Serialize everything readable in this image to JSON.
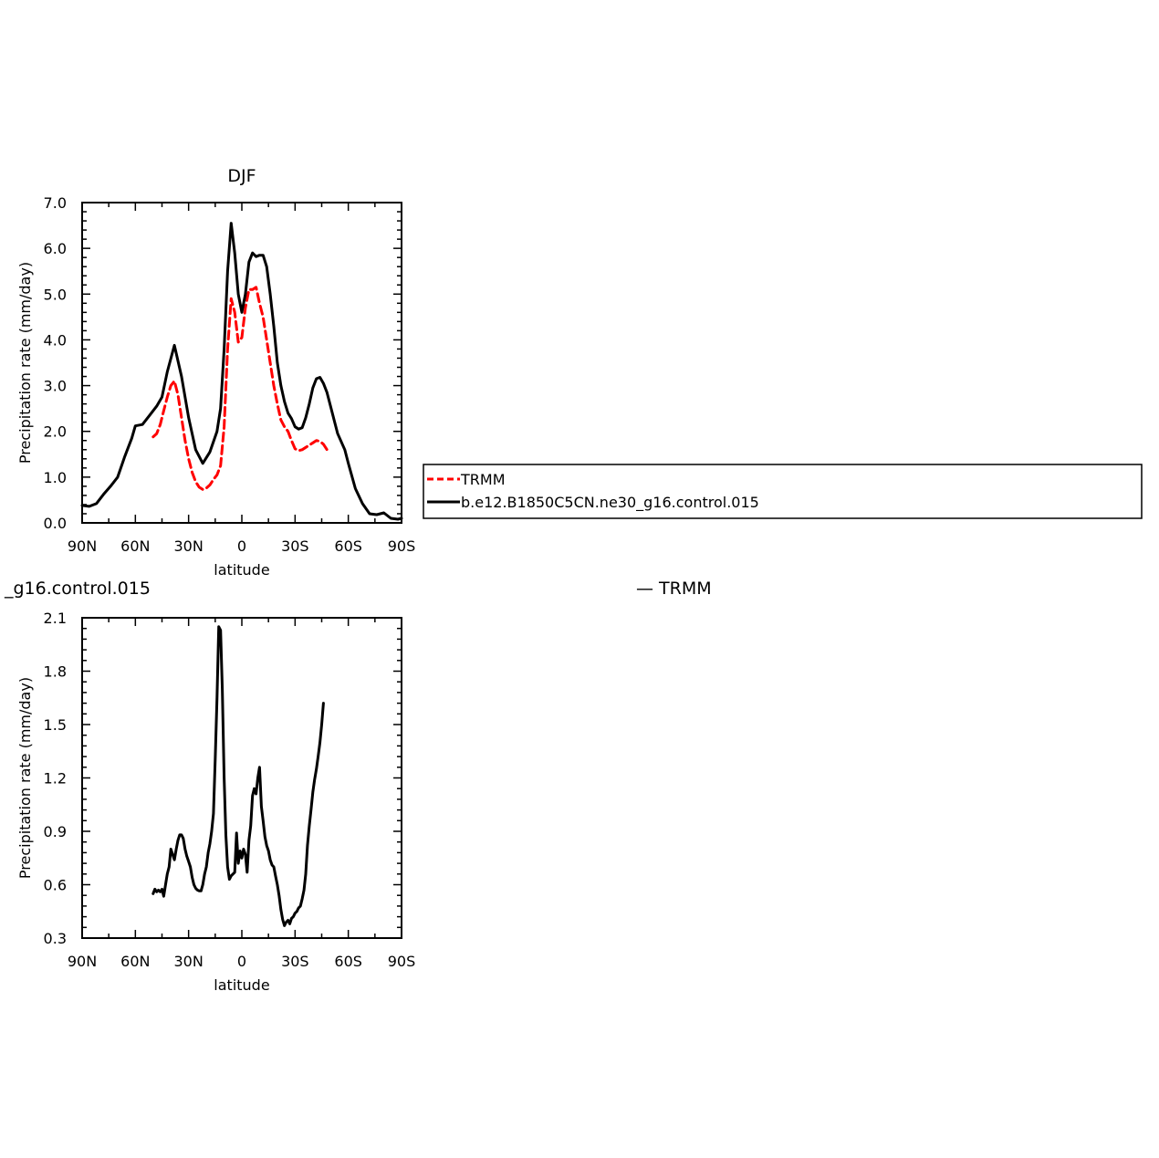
{
  "chart_data": [
    {
      "type": "line",
      "title": "DJF",
      "xlabel": "latitude",
      "ylabel": "Precipitation rate (mm/day)",
      "xlim": [
        -90,
        90
      ],
      "ylim": [
        0.0,
        7.0
      ],
      "x_ticks": [
        -90,
        -60,
        -30,
        0,
        30,
        60,
        90
      ],
      "x_tick_labels": [
        "90N",
        "60N",
        "30N",
        "0",
        "30S",
        "60S",
        "90S"
      ],
      "y_ticks": [
        0,
        1,
        2,
        3,
        4,
        5,
        6,
        7
      ],
      "y_tick_labels": [
        "0.0",
        "1.0",
        "2.0",
        "3.0",
        "4.0",
        "5.0",
        "6.0",
        "7.0"
      ],
      "legend": {
        "placement": "right",
        "entries": [
          "TRMM",
          "b.e12.B1850C5CN.ne30_g16.control.015"
        ]
      },
      "series": [
        {
          "name": "TRMM",
          "color": "#ff0000",
          "dash": "dashed",
          "points": [
            [
              -50,
              1.88
            ],
            [
              -48,
              1.95
            ],
            [
              -46,
              2.15
            ],
            [
              -44,
              2.45
            ],
            [
              -42,
              2.75
            ],
            [
              -40,
              3.0
            ],
            [
              -38,
              3.1
            ],
            [
              -36,
              2.8
            ],
            [
              -34,
              2.3
            ],
            [
              -32,
              1.8
            ],
            [
              -30,
              1.4
            ],
            [
              -28,
              1.1
            ],
            [
              -26,
              0.9
            ],
            [
              -24,
              0.78
            ],
            [
              -22,
              0.73
            ],
            [
              -20,
              0.76
            ],
            [
              -18,
              0.83
            ],
            [
              -16,
              0.95
            ],
            [
              -14,
              1.05
            ],
            [
              -12,
              1.25
            ],
            [
              -10,
              2.1
            ],
            [
              -8,
              3.8
            ],
            [
              -6,
              4.9
            ],
            [
              -4,
              4.6
            ],
            [
              -2,
              3.95
            ],
            [
              0,
              4.05
            ],
            [
              2,
              4.7
            ],
            [
              4,
              5.1
            ],
            [
              6,
              5.1
            ],
            [
              8,
              5.15
            ],
            [
              10,
              4.8
            ],
            [
              12,
              4.5
            ],
            [
              14,
              4.0
            ],
            [
              16,
              3.5
            ],
            [
              18,
              3.0
            ],
            [
              20,
              2.6
            ],
            [
              22,
              2.25
            ],
            [
              24,
              2.1
            ],
            [
              26,
              2.0
            ],
            [
              28,
              1.8
            ],
            [
              30,
              1.62
            ],
            [
              32,
              1.58
            ],
            [
              34,
              1.6
            ],
            [
              36,
              1.65
            ],
            [
              38,
              1.7
            ],
            [
              40,
              1.75
            ],
            [
              42,
              1.8
            ],
            [
              44,
              1.78
            ],
            [
              46,
              1.72
            ],
            [
              48,
              1.6
            ]
          ]
        },
        {
          "name": "b.e12.B1850C5CN.ne30_g16.control.015",
          "color": "#000000",
          "dash": "solid",
          "points": [
            [
              -90,
              0.38
            ],
            [
              -86,
              0.36
            ],
            [
              -82,
              0.42
            ],
            [
              -78,
              0.62
            ],
            [
              -74,
              0.8
            ],
            [
              -70,
              1.0
            ],
            [
              -66,
              1.45
            ],
            [
              -62,
              1.85
            ],
            [
              -60,
              2.12
            ],
            [
              -56,
              2.15
            ],
            [
              -52,
              2.35
            ],
            [
              -48,
              2.55
            ],
            [
              -45,
              2.75
            ],
            [
              -42,
              3.3
            ],
            [
              -38,
              3.88
            ],
            [
              -34,
              3.2
            ],
            [
              -30,
              2.3
            ],
            [
              -26,
              1.6
            ],
            [
              -22,
              1.3
            ],
            [
              -18,
              1.55
            ],
            [
              -14,
              2.0
            ],
            [
              -12,
              2.5
            ],
            [
              -10,
              3.8
            ],
            [
              -8,
              5.5
            ],
            [
              -6,
              6.55
            ],
            [
              -4,
              5.9
            ],
            [
              -2,
              5.0
            ],
            [
              0,
              4.6
            ],
            [
              2,
              5.0
            ],
            [
              4,
              5.7
            ],
            [
              6,
              5.9
            ],
            [
              8,
              5.82
            ],
            [
              10,
              5.85
            ],
            [
              12,
              5.85
            ],
            [
              14,
              5.6
            ],
            [
              16,
              5.0
            ],
            [
              18,
              4.3
            ],
            [
              20,
              3.5
            ],
            [
              22,
              3.0
            ],
            [
              24,
              2.65
            ],
            [
              26,
              2.4
            ],
            [
              28,
              2.28
            ],
            [
              30,
              2.1
            ],
            [
              32,
              2.05
            ],
            [
              34,
              2.08
            ],
            [
              36,
              2.3
            ],
            [
              38,
              2.6
            ],
            [
              40,
              2.95
            ],
            [
              42,
              3.15
            ],
            [
              44,
              3.18
            ],
            [
              46,
              3.05
            ],
            [
              48,
              2.85
            ],
            [
              50,
              2.55
            ],
            [
              52,
              2.25
            ],
            [
              54,
              1.95
            ],
            [
              58,
              1.6
            ],
            [
              60,
              1.3
            ],
            [
              64,
              0.75
            ],
            [
              68,
              0.42
            ],
            [
              72,
              0.2
            ],
            [
              76,
              0.18
            ],
            [
              80,
              0.22
            ],
            [
              84,
              0.1
            ],
            [
              88,
              0.08
            ],
            [
              90,
              0.1
            ]
          ]
        }
      ]
    },
    {
      "type": "line",
      "title": "_g16.control.015",
      "title_right": "— TRMM",
      "xlabel": "latitude",
      "ylabel": "Precipitation rate (mm/day)",
      "xlim": [
        -90,
        90
      ],
      "ylim": [
        0.3,
        2.1
      ],
      "x_ticks": [
        -90,
        -60,
        -30,
        0,
        30,
        60,
        90
      ],
      "x_tick_labels": [
        "90N",
        "60N",
        "30N",
        "0",
        "30S",
        "60S",
        "90S"
      ],
      "y_ticks": [
        0.3,
        0.6,
        0.9,
        1.2,
        1.5,
        1.8,
        2.1
      ],
      "y_tick_labels": [
        "0.3",
        "0.6",
        "0.9",
        "1.2",
        "1.5",
        "1.8",
        "2.1"
      ],
      "series": [
        {
          "color": "#000000",
          "dash": "solid",
          "points": [
            [
              -50,
              0.55
            ],
            [
              -49,
              0.575
            ],
            [
              -48,
              0.56
            ],
            [
              -47,
              0.57
            ],
            [
              -46,
              0.56
            ],
            [
              -45,
              0.575
            ],
            [
              -44,
              0.535
            ],
            [
              -43,
              0.6
            ],
            [
              -42,
              0.66
            ],
            [
              -41,
              0.7
            ],
            [
              -40,
              0.8
            ],
            [
              -39,
              0.77
            ],
            [
              -38,
              0.74
            ],
            [
              -37,
              0.8
            ],
            [
              -36,
              0.85
            ],
            [
              -35,
              0.88
            ],
            [
              -34,
              0.88
            ],
            [
              -33,
              0.86
            ],
            [
              -32,
              0.8
            ],
            [
              -31,
              0.76
            ],
            [
              -30,
              0.73
            ],
            [
              -29,
              0.7
            ],
            [
              -28,
              0.64
            ],
            [
              -27,
              0.6
            ],
            [
              -26,
              0.58
            ],
            [
              -25,
              0.57
            ],
            [
              -24,
              0.565
            ],
            [
              -23,
              0.565
            ],
            [
              -22,
              0.6
            ],
            [
              -21,
              0.66
            ],
            [
              -20,
              0.7
            ],
            [
              -19,
              0.78
            ],
            [
              -18,
              0.83
            ],
            [
              -17,
              0.9
            ],
            [
              -16,
              1.0
            ],
            [
              -15,
              1.3
            ],
            [
              -14,
              1.65
            ],
            [
              -13,
              2.05
            ],
            [
              -12,
              2.03
            ],
            [
              -11,
              1.7
            ],
            [
              -10,
              1.2
            ],
            [
              -9,
              0.88
            ],
            [
              -8,
              0.7
            ],
            [
              -7,
              0.63
            ],
            [
              -6,
              0.65
            ],
            [
              -5,
              0.66
            ],
            [
              -4,
              0.67
            ],
            [
              -3,
              0.89
            ],
            [
              -2,
              0.72
            ],
            [
              -1,
              0.79
            ],
            [
              0,
              0.75
            ],
            [
              1,
              0.8
            ],
            [
              2,
              0.77
            ],
            [
              3,
              0.67
            ],
            [
              4,
              0.85
            ],
            [
              5,
              0.93
            ],
            [
              6,
              1.1
            ],
            [
              7,
              1.14
            ],
            [
              8,
              1.11
            ],
            [
              9,
              1.2
            ],
            [
              10,
              1.26
            ],
            [
              11,
              1.04
            ],
            [
              12,
              0.96
            ],
            [
              13,
              0.87
            ],
            [
              14,
              0.82
            ],
            [
              15,
              0.79
            ],
            [
              16,
              0.74
            ],
            [
              17,
              0.71
            ],
            [
              18,
              0.7
            ],
            [
              19,
              0.65
            ],
            [
              20,
              0.6
            ],
            [
              21,
              0.54
            ],
            [
              22,
              0.46
            ],
            [
              23,
              0.405
            ],
            [
              24,
              0.37
            ],
            [
              25,
              0.39
            ],
            [
              26,
              0.4
            ],
            [
              27,
              0.38
            ],
            [
              28,
              0.41
            ],
            [
              29,
              0.42
            ],
            [
              30,
              0.44
            ],
            [
              31,
              0.45
            ],
            [
              32,
              0.47
            ],
            [
              33,
              0.48
            ],
            [
              34,
              0.52
            ],
            [
              35,
              0.57
            ],
            [
              36,
              0.66
            ],
            [
              37,
              0.82
            ],
            [
              38,
              0.93
            ],
            [
              39,
              1.02
            ],
            [
              40,
              1.12
            ],
            [
              41,
              1.19
            ],
            [
              42,
              1.25
            ],
            [
              43,
              1.32
            ],
            [
              44,
              1.4
            ],
            [
              45,
              1.5
            ],
            [
              46,
              1.62
            ]
          ]
        }
      ]
    }
  ]
}
